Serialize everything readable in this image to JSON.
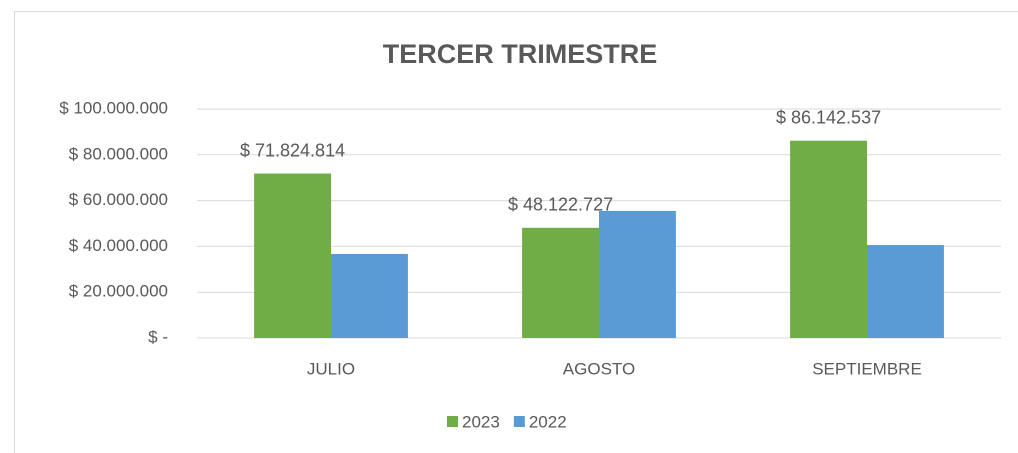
{
  "chart_data": {
    "type": "bar",
    "title": "TERCER TRIMESTRE",
    "categories": [
      "JULIO",
      "AGOSTO",
      "SEPTIEMBRE"
    ],
    "series": [
      {
        "name": "2023",
        "color": "#70ad47",
        "values": [
          71824814,
          48122727,
          86142537
        ],
        "value_labels": [
          "$ 71.824.814",
          "$ 48.122.727",
          "$ 86.142.537"
        ]
      },
      {
        "name": "2022",
        "color": "#5b9bd5",
        "values": [
          36700000,
          55500000,
          40600000
        ]
      }
    ],
    "ylim": [
      0,
      100000000
    ],
    "yticks": [
      {
        "value": 0,
        "label": "$ -"
      },
      {
        "value": 20000000,
        "label": "$ 20.000.000"
      },
      {
        "value": 40000000,
        "label": "$ 40.000.000"
      },
      {
        "value": 60000000,
        "label": "$ 60.000.000"
      },
      {
        "value": 80000000,
        "label": "$ 80.000.000"
      },
      {
        "value": 100000000,
        "label": "$ 100.000.000"
      }
    ],
    "grid": true,
    "legend": "bottom"
  }
}
